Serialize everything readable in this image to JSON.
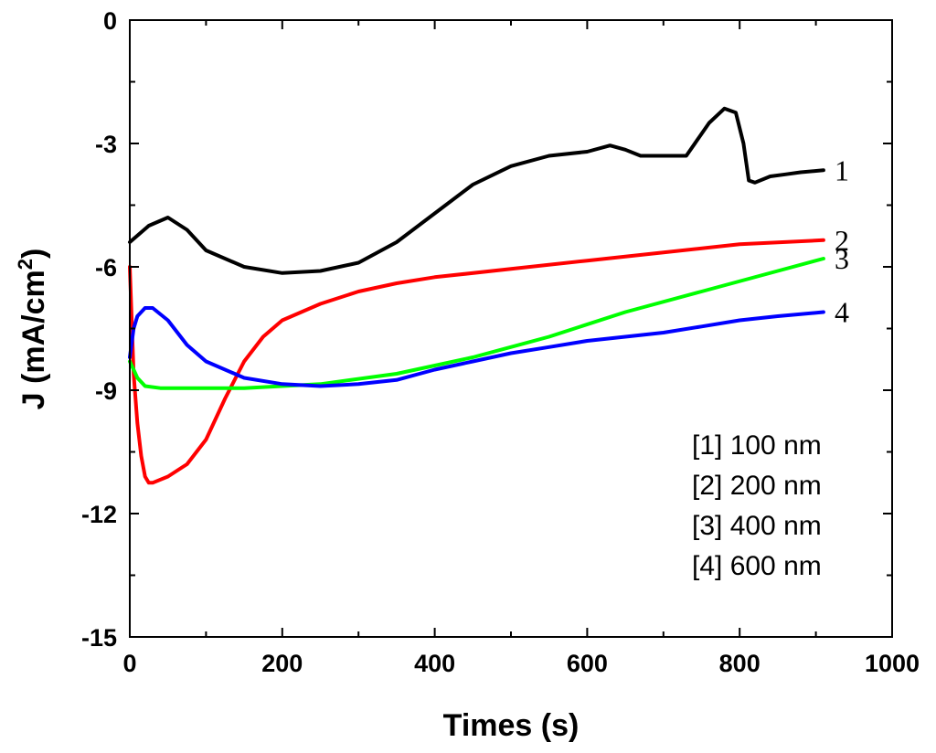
{
  "chart_data": {
    "type": "line",
    "title": "",
    "xlabel": "Times (s)",
    "ylabel_main": "J (mA/cm",
    "ylabel_sup": "2",
    "ylabel_close": ")",
    "xlim": [
      0,
      1000
    ],
    "ylim": [
      -15,
      0
    ],
    "xticks": [
      0,
      200,
      400,
      600,
      800,
      1000
    ],
    "yticks": [
      0,
      -3,
      -6,
      -9,
      -12,
      -15
    ],
    "xtick_labels": [
      "0",
      "200",
      "400",
      "600",
      "800",
      "1000"
    ],
    "ytick_labels": [
      "0",
      "-3",
      "-6",
      "-9",
      "-12",
      "-15"
    ],
    "grid": false,
    "legend_position": "bottom-right",
    "legend": [
      "[1] 100 nm",
      "[2] 200 nm",
      "[3] 400 nm",
      "[4] 600 nm"
    ],
    "series": [
      {
        "name": "1",
        "label": "1",
        "color": "#000000",
        "x": [
          0,
          25,
          50,
          75,
          100,
          150,
          200,
          250,
          300,
          350,
          400,
          450,
          500,
          550,
          600,
          630,
          650,
          670,
          700,
          730,
          760,
          780,
          795,
          805,
          812,
          820,
          840,
          860,
          880,
          910
        ],
        "y": [
          -5.4,
          -5.0,
          -4.8,
          -5.1,
          -5.6,
          -6.0,
          -6.15,
          -6.1,
          -5.9,
          -5.4,
          -4.7,
          -4.0,
          -3.55,
          -3.3,
          -3.2,
          -3.05,
          -3.15,
          -3.3,
          -3.3,
          -3.3,
          -2.5,
          -2.15,
          -2.25,
          -3.0,
          -3.9,
          -3.95,
          -3.8,
          -3.75,
          -3.7,
          -3.65
        ]
      },
      {
        "name": "2",
        "label": "2",
        "color": "#ff0000",
        "x": [
          0,
          5,
          10,
          15,
          20,
          25,
          30,
          50,
          75,
          100,
          125,
          150,
          175,
          200,
          250,
          300,
          350,
          400,
          500,
          600,
          700,
          800,
          910
        ],
        "y": [
          -6.0,
          -8.6,
          -9.8,
          -10.6,
          -11.1,
          -11.25,
          -11.25,
          -11.1,
          -10.8,
          -10.2,
          -9.2,
          -8.3,
          -7.7,
          -7.3,
          -6.9,
          -6.6,
          -6.4,
          -6.25,
          -6.05,
          -5.85,
          -5.65,
          -5.45,
          -5.35
        ]
      },
      {
        "name": "3",
        "label": "3",
        "color": "#00ff00",
        "x": [
          0,
          5,
          10,
          20,
          40,
          80,
          150,
          250,
          350,
          450,
          550,
          650,
          750,
          850,
          910
        ],
        "y": [
          -8.3,
          -8.5,
          -8.7,
          -8.9,
          -8.95,
          -8.95,
          -8.95,
          -8.85,
          -8.6,
          -8.2,
          -7.7,
          -7.1,
          -6.6,
          -6.1,
          -5.8
        ]
      },
      {
        "name": "4",
        "label": "4",
        "color": "#0000ff",
        "x": [
          0,
          5,
          10,
          20,
          30,
          50,
          75,
          100,
          150,
          200,
          250,
          300,
          350,
          400,
          450,
          500,
          550,
          600,
          650,
          700,
          750,
          800,
          850,
          910
        ],
        "y": [
          -8.2,
          -7.5,
          -7.2,
          -7.0,
          -7.0,
          -7.3,
          -7.9,
          -8.3,
          -8.7,
          -8.85,
          -8.9,
          -8.85,
          -8.75,
          -8.5,
          -8.3,
          -8.1,
          -7.95,
          -7.8,
          -7.7,
          -7.6,
          -7.45,
          -7.3,
          -7.2,
          -7.1
        ]
      }
    ]
  }
}
